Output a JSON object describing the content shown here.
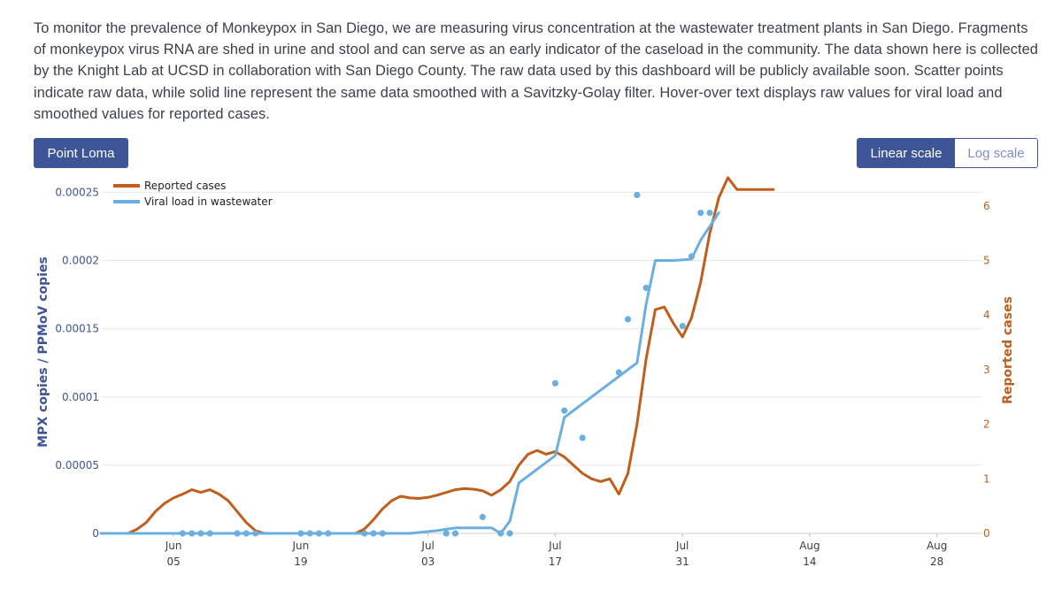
{
  "intro_text": "To monitor the prevalence of Monkeypox in San Diego, we are measuring virus concentration at the wastewater treatment plants in San Diego. Fragments of monkeypox virus RNA are shed in urine and stool and can serve as an early indicator of the caseload in the community. The data shown here is collected by the Knight Lab at UCSD in collaboration with San Diego County. The raw data used by this dashboard will be publicly available soon. Scatter points indicate raw data, while solid line represent the same data smoothed with a Savitzky-Golay filter. Hover-over text displays raw values for viral load and smoothed values for reported cases.",
  "controls": {
    "site_button": "Point Loma",
    "linear_label": "Linear scale",
    "log_label": "Log scale",
    "active_scale": "linear"
  },
  "colors": {
    "viral": "#6aafe0",
    "cases": "#c05e1c",
    "axis_left": "#3d5496",
    "button": "#3d5496"
  },
  "chart_data": {
    "type": "line",
    "x_range": [
      "2022-05-28",
      "2022-09-02"
    ],
    "x_ticks": [
      {
        "date": "2022-06-05",
        "line1": "Jun",
        "line2": "05"
      },
      {
        "date": "2022-06-19",
        "line1": "Jun",
        "line2": "19"
      },
      {
        "date": "2022-07-03",
        "line1": "Jul",
        "line2": "03"
      },
      {
        "date": "2022-07-17",
        "line1": "Jul",
        "line2": "17"
      },
      {
        "date": "2022-07-31",
        "line1": "Jul",
        "line2": "31"
      },
      {
        "date": "2022-08-14",
        "line1": "Aug",
        "line2": "14"
      },
      {
        "date": "2022-08-28",
        "line1": "Aug",
        "line2": "28"
      }
    ],
    "y_left": {
      "label": "MPX copies / PPMoV copies",
      "range": [
        0,
        0.00026
      ],
      "ticks": [
        {
          "value": 0,
          "label": "0"
        },
        {
          "value": 5e-05,
          "label": "0.00005"
        },
        {
          "value": 0.0001,
          "label": "0.0001"
        },
        {
          "value": 0.00015,
          "label": "0.00015"
        },
        {
          "value": 0.0002,
          "label": "0.0002"
        },
        {
          "value": 0.00025,
          "label": "0.00025"
        }
      ]
    },
    "y_right": {
      "label": "Reported cases",
      "range": [
        0,
        6.5
      ],
      "ticks": [
        {
          "value": 0,
          "label": "0"
        },
        {
          "value": 1,
          "label": "1"
        },
        {
          "value": 2,
          "label": "2"
        },
        {
          "value": 3,
          "label": "3"
        },
        {
          "value": 4,
          "label": "4"
        },
        {
          "value": 5,
          "label": "5"
        },
        {
          "value": 6,
          "label": "6"
        }
      ]
    },
    "grid": true,
    "legend_position": "top-left",
    "series": [
      {
        "name": "Reported cases",
        "kind": "line",
        "axis": "right",
        "points": [
          [
            "2022-05-28",
            0
          ],
          [
            "2022-05-31",
            0
          ],
          [
            "2022-06-01",
            0.08
          ],
          [
            "2022-06-02",
            0.2
          ],
          [
            "2022-06-03",
            0.4
          ],
          [
            "2022-06-04",
            0.55
          ],
          [
            "2022-06-05",
            0.65
          ],
          [
            "2022-06-06",
            0.72
          ],
          [
            "2022-06-07",
            0.8
          ],
          [
            "2022-06-08",
            0.75
          ],
          [
            "2022-06-09",
            0.8
          ],
          [
            "2022-06-10",
            0.72
          ],
          [
            "2022-06-11",
            0.6
          ],
          [
            "2022-06-12",
            0.4
          ],
          [
            "2022-06-13",
            0.2
          ],
          [
            "2022-06-14",
            0.05
          ],
          [
            "2022-06-15",
            0
          ],
          [
            "2022-06-20",
            0
          ],
          [
            "2022-06-25",
            0
          ],
          [
            "2022-06-26",
            0.08
          ],
          [
            "2022-06-27",
            0.25
          ],
          [
            "2022-06-28",
            0.45
          ],
          [
            "2022-06-29",
            0.6
          ],
          [
            "2022-06-30",
            0.68
          ],
          [
            "2022-07-01",
            0.65
          ],
          [
            "2022-07-02",
            0.64
          ],
          [
            "2022-07-03",
            0.66
          ],
          [
            "2022-07-04",
            0.7
          ],
          [
            "2022-07-05",
            0.75
          ],
          [
            "2022-07-06",
            0.8
          ],
          [
            "2022-07-07",
            0.82
          ],
          [
            "2022-07-08",
            0.81
          ],
          [
            "2022-07-09",
            0.78
          ],
          [
            "2022-07-10",
            0.7
          ],
          [
            "2022-07-11",
            0.8
          ],
          [
            "2022-07-12",
            0.95
          ],
          [
            "2022-07-13",
            1.25
          ],
          [
            "2022-07-14",
            1.45
          ],
          [
            "2022-07-15",
            1.52
          ],
          [
            "2022-07-16",
            1.45
          ],
          [
            "2022-07-17",
            1.5
          ],
          [
            "2022-07-18",
            1.4
          ],
          [
            "2022-07-19",
            1.25
          ],
          [
            "2022-07-20",
            1.1
          ],
          [
            "2022-07-21",
            1.0
          ],
          [
            "2022-07-22",
            0.95
          ],
          [
            "2022-07-23",
            1.0
          ],
          [
            "2022-07-24",
            0.72
          ],
          [
            "2022-07-25",
            1.1
          ],
          [
            "2022-07-26",
            2.0
          ],
          [
            "2022-07-27",
            3.2
          ],
          [
            "2022-07-28",
            4.1
          ],
          [
            "2022-07-29",
            4.15
          ],
          [
            "2022-07-30",
            3.85
          ],
          [
            "2022-07-31",
            3.6
          ],
          [
            "2022-08-01",
            3.95
          ],
          [
            "2022-08-02",
            4.6
          ],
          [
            "2022-08-03",
            5.5
          ],
          [
            "2022-08-04",
            6.15
          ],
          [
            "2022-08-05",
            6.52
          ],
          [
            "2022-08-06",
            6.3
          ],
          [
            "2022-08-07",
            6.3
          ],
          [
            "2022-08-08",
            6.3
          ],
          [
            "2022-08-09",
            6.3
          ],
          [
            "2022-08-10",
            6.3
          ]
        ]
      },
      {
        "name": "Viral load in wastewater",
        "kind": "line",
        "axis": "left",
        "points": [
          [
            "2022-05-28",
            0
          ],
          [
            "2022-07-01",
            0
          ],
          [
            "2022-07-04",
            2e-06
          ],
          [
            "2022-07-06",
            4e-06
          ],
          [
            "2022-07-09",
            4e-06
          ],
          [
            "2022-07-10",
            4e-06
          ],
          [
            "2022-07-11",
            0
          ],
          [
            "2022-07-12",
            9e-06
          ],
          [
            "2022-07-13",
            3.7e-05
          ],
          [
            "2022-07-17",
            5.7e-05
          ],
          [
            "2022-07-18",
            8.5e-05
          ],
          [
            "2022-07-19",
            9e-05
          ],
          [
            "2022-07-26",
            0.000125
          ],
          [
            "2022-07-27",
            0.000168
          ],
          [
            "2022-07-28",
            0.0002
          ],
          [
            "2022-07-29",
            0.0002
          ],
          [
            "2022-07-30",
            0.0002
          ],
          [
            "2022-08-01",
            0.000201
          ],
          [
            "2022-08-02",
            0.000215
          ],
          [
            "2022-08-03",
            0.000225
          ],
          [
            "2022-08-04",
            0.000235
          ]
        ],
        "raw_points": [
          [
            "2022-06-06",
            0
          ],
          [
            "2022-06-07",
            0
          ],
          [
            "2022-06-08",
            0
          ],
          [
            "2022-06-09",
            0
          ],
          [
            "2022-06-12",
            0
          ],
          [
            "2022-06-13",
            0
          ],
          [
            "2022-06-14",
            0
          ],
          [
            "2022-06-19",
            0
          ],
          [
            "2022-06-20",
            0
          ],
          [
            "2022-06-21",
            0
          ],
          [
            "2022-06-22",
            0
          ],
          [
            "2022-06-26",
            0
          ],
          [
            "2022-06-27",
            0
          ],
          [
            "2022-06-28",
            0
          ],
          [
            "2022-07-05",
            0
          ],
          [
            "2022-07-06",
            0
          ],
          [
            "2022-07-09",
            1.2e-05
          ],
          [
            "2022-07-11",
            0
          ],
          [
            "2022-07-12",
            0
          ],
          [
            "2022-07-17",
            0.00011
          ],
          [
            "2022-07-18",
            9e-05
          ],
          [
            "2022-07-20",
            7e-05
          ],
          [
            "2022-07-24",
            0.000118
          ],
          [
            "2022-07-25",
            0.000157
          ],
          [
            "2022-07-26",
            0.000248
          ],
          [
            "2022-07-27",
            0.00018
          ],
          [
            "2022-07-31",
            0.000152
          ],
          [
            "2022-08-01",
            0.000203
          ],
          [
            "2022-08-02",
            0.000235
          ],
          [
            "2022-08-03",
            0.000235
          ]
        ]
      }
    ]
  }
}
